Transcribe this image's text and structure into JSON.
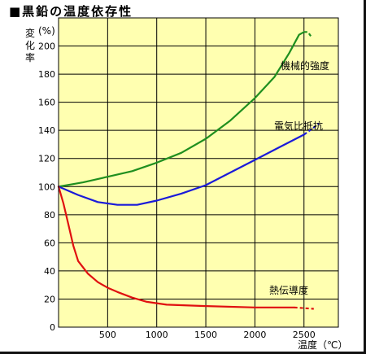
{
  "title": "■黒鉛の温度依存性",
  "chart_data": {
    "type": "line",
    "title": "■黒鉛の温度依存性",
    "ylabel_lines": [
      "変",
      "化",
      "率"
    ],
    "yunit": "(%)",
    "xlabel": "温度（℃）",
    "xlim": [
      0,
      2850
    ],
    "ylim": [
      0,
      220
    ],
    "xticks": [
      500,
      1000,
      1500,
      2000,
      2500
    ],
    "yticks": [
      0,
      20,
      40,
      60,
      80,
      100,
      120,
      140,
      160,
      180,
      200
    ],
    "grid": true,
    "background": "#FFFFB0",
    "series": [
      {
        "name": "機械的強度",
        "color": "#1F8F1F",
        "points": [
          [
            0,
            100
          ],
          [
            250,
            103
          ],
          [
            500,
            107
          ],
          [
            750,
            111
          ],
          [
            1000,
            117
          ],
          [
            1250,
            124
          ],
          [
            1500,
            134
          ],
          [
            1750,
            147
          ],
          [
            2000,
            163
          ],
          [
            2200,
            178
          ],
          [
            2350,
            195
          ],
          [
            2450,
            208
          ],
          [
            2500,
            210
          ]
        ],
        "dashed_points": [
          [
            2500,
            210
          ],
          [
            2540,
            210
          ],
          [
            2580,
            206
          ]
        ]
      },
      {
        "name": "電気比抵抗",
        "color": "#1A1AD9",
        "points": [
          [
            0,
            100
          ],
          [
            200,
            94
          ],
          [
            400,
            89
          ],
          [
            600,
            87
          ],
          [
            800,
            87
          ],
          [
            1000,
            90
          ],
          [
            1250,
            95
          ],
          [
            1500,
            101
          ],
          [
            1750,
            110
          ],
          [
            2000,
            119
          ],
          [
            2250,
            128
          ],
          [
            2500,
            137
          ]
        ],
        "dashed_points": [
          [
            2500,
            137
          ],
          [
            2600,
            142
          ],
          [
            2650,
            145
          ]
        ]
      },
      {
        "name": "熱伝導度",
        "color": "#E01010",
        "points": [
          [
            0,
            100
          ],
          [
            50,
            88
          ],
          [
            100,
            73
          ],
          [
            150,
            58
          ],
          [
            200,
            47
          ],
          [
            300,
            38
          ],
          [
            400,
            32
          ],
          [
            500,
            28
          ],
          [
            600,
            25
          ],
          [
            750,
            21
          ],
          [
            900,
            18
          ],
          [
            1100,
            16
          ],
          [
            1500,
            15
          ],
          [
            2000,
            14
          ],
          [
            2400,
            14
          ]
        ],
        "dashed_points": [
          [
            2400,
            14
          ],
          [
            2600,
            13
          ]
        ]
      }
    ]
  }
}
